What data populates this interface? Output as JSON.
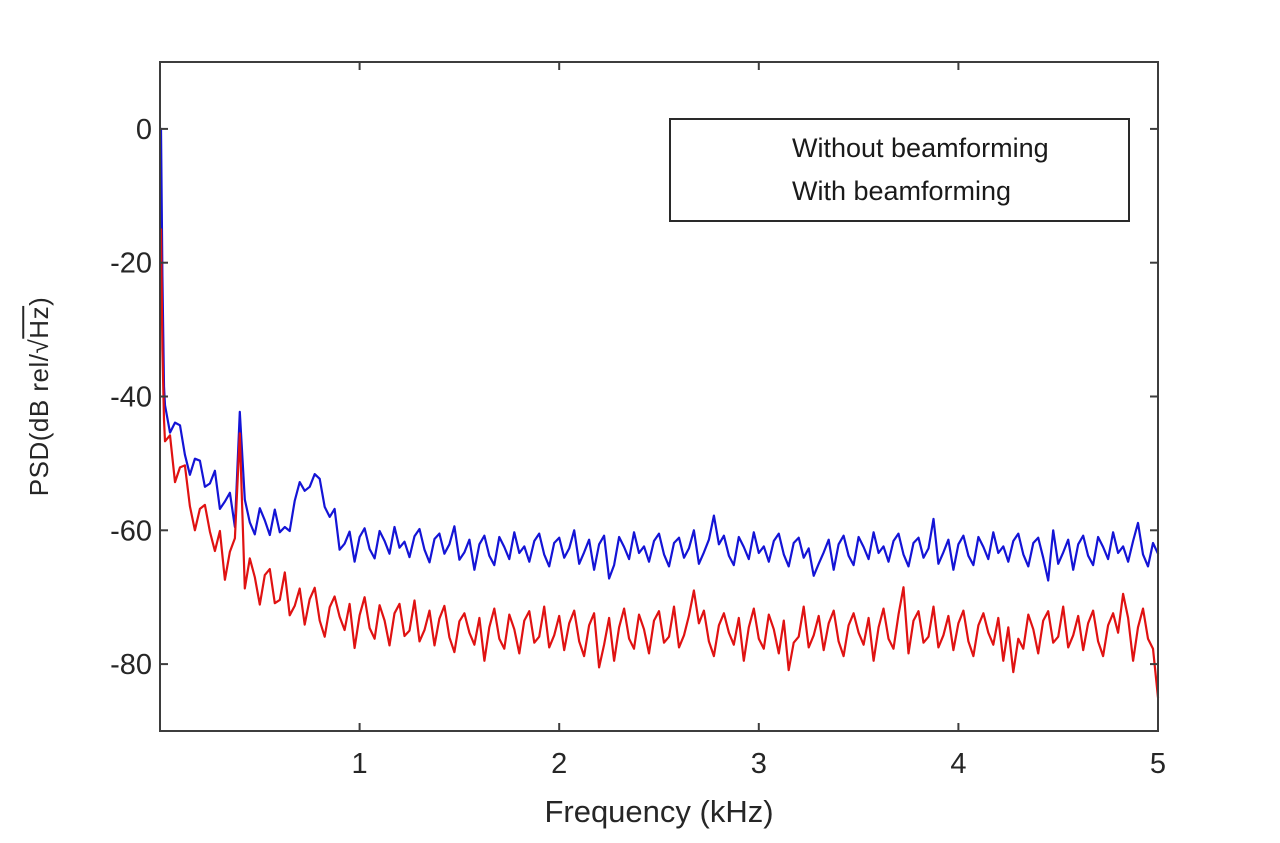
{
  "figure": {
    "background": "#ffffff"
  },
  "chart_data": {
    "type": "line",
    "title": "",
    "xlabel": "Frequency (kHz)",
    "ylabel": "PSD(dB rel/√Hz)",
    "ylabel_parts": {
      "pre": "PSD(dB rel/√",
      "overline": "Hz",
      "post": ")"
    },
    "xlim": [
      0,
      5
    ],
    "ylim": [
      -90,
      10
    ],
    "grid": false,
    "axis_color": "#3d3d3d",
    "tick_label_color": "#262626",
    "x_ticks": {
      "values": [
        1,
        2,
        3,
        4,
        5
      ],
      "labels": [
        "1",
        "2",
        "3",
        "4",
        "5"
      ]
    },
    "y_ticks": {
      "values": [
        0,
        -20,
        -40,
        -60,
        -80
      ],
      "labels": [
        "0",
        "-20",
        "-40",
        "-60",
        "-80"
      ]
    },
    "legend": {
      "position": "upper-right",
      "entries": [
        "Without beamforming",
        "With beamforming"
      ]
    },
    "series": [
      {
        "name": "Without beamforming",
        "color": "#1414d6",
        "lead_points": [
          [
            0.005,
            0.0
          ],
          [
            0.012,
            -22.0
          ],
          [
            0.02,
            -38.5
          ]
        ],
        "x_start": 0.025,
        "x_step": 0.025,
        "values": [
          -41.3,
          -45.4,
          -43.9,
          -44.3,
          -48.7,
          -51.7,
          -49.3,
          -49.6,
          -53.5,
          -53.0,
          -51.1,
          -56.8,
          -55.7,
          -54.4,
          -59.5,
          -42.3,
          -55.4,
          -58.8,
          -60.6,
          -56.7,
          -58.5,
          -60.7,
          -56.9,
          -60.3,
          -59.5,
          -60.1,
          -55.6,
          -52.8,
          -54.1,
          -53.5,
          -51.6,
          -52.3,
          -56.5,
          -58.0,
          -56.8,
          -62.9,
          -62.0,
          -60.2,
          -64.7,
          -61.0,
          -59.7,
          -62.8,
          -64.2,
          -60.1,
          -61.6,
          -63.5,
          -59.5,
          -62.6,
          -61.7,
          -64.0,
          -60.9,
          -59.8,
          -62.9,
          -64.8,
          -61.3,
          -60.5,
          -63.5,
          -62.1,
          -59.4,
          -64.4,
          -63.3,
          -61.4,
          -65.9,
          -62.1,
          -60.8,
          -63.8,
          -65.2,
          -61.0,
          -62.5,
          -64.3,
          -60.3,
          -63.4,
          -62.4,
          -64.7,
          -61.6,
          -60.5,
          -63.6,
          -65.4,
          -61.9,
          -61.1,
          -64.1,
          -62.7,
          -60.0,
          -65.0,
          -63.3,
          -61.4,
          -65.9,
          -62.1,
          -60.8,
          -67.2,
          -65.2,
          -61.0,
          -62.5,
          -64.3,
          -60.3,
          -63.4,
          -62.4,
          -64.7,
          -61.6,
          -60.5,
          -63.6,
          -65.4,
          -61.9,
          -61.1,
          -64.1,
          -62.7,
          -60.0,
          -65.0,
          -63.3,
          -61.4,
          -57.8,
          -62.1,
          -60.8,
          -63.8,
          -65.2,
          -61.0,
          -62.5,
          -64.3,
          -60.3,
          -63.4,
          -62.4,
          -64.7,
          -61.6,
          -60.5,
          -63.6,
          -65.4,
          -61.9,
          -61.1,
          -64.1,
          -62.7,
          -66.8,
          -65.0,
          -63.3,
          -61.4,
          -65.9,
          -62.1,
          -60.8,
          -63.8,
          -65.2,
          -61.0,
          -62.5,
          -64.3,
          -60.3,
          -63.4,
          -62.4,
          -64.7,
          -61.6,
          -60.5,
          -63.6,
          -65.4,
          -61.9,
          -61.1,
          -64.1,
          -62.7,
          -58.3,
          -65.0,
          -63.3,
          -61.4,
          -65.9,
          -62.1,
          -60.8,
          -63.8,
          -65.2,
          -61.0,
          -62.5,
          -64.3,
          -60.3,
          -63.4,
          -62.4,
          -64.7,
          -61.6,
          -60.5,
          -63.6,
          -65.4,
          -61.9,
          -61.1,
          -64.1,
          -67.5,
          -60.0,
          -65.0,
          -63.3,
          -61.4,
          -65.9,
          -62.1,
          -60.8,
          -63.8,
          -65.2,
          -61.0,
          -62.5,
          -64.3,
          -60.3,
          -63.4,
          -62.4,
          -64.7,
          -61.6,
          -58.9,
          -63.6,
          -65.4,
          -61.9,
          -63.5
        ]
      },
      {
        "name": "With beamforming",
        "color": "#e01212",
        "lead_points": [
          [
            0.005,
            -15.0
          ],
          [
            0.012,
            -33.0
          ],
          [
            0.02,
            -43.5
          ]
        ],
        "x_start": 0.025,
        "x_step": 0.025,
        "values": [
          -46.7,
          -45.8,
          -52.8,
          -50.6,
          -50.3,
          -56.4,
          -60.0,
          -56.8,
          -56.2,
          -60.2,
          -63.1,
          -60.1,
          -67.4,
          -63.2,
          -61.2,
          -45.5,
          -68.7,
          -64.2,
          -67.0,
          -71.1,
          -66.7,
          -65.8,
          -70.9,
          -70.4,
          -66.3,
          -72.7,
          -71.3,
          -68.7,
          -74.1,
          -70.3,
          -68.6,
          -73.5,
          -75.9,
          -71.5,
          -69.9,
          -72.9,
          -74.9,
          -71.0,
          -77.6,
          -72.7,
          -70.0,
          -74.6,
          -76.2,
          -71.2,
          -73.5,
          -77.2,
          -72.4,
          -71.0,
          -75.8,
          -75.0,
          -70.5,
          -76.6,
          -74.9,
          -72.0,
          -77.2,
          -73.2,
          -71.3,
          -76.0,
          -78.2,
          -73.6,
          -72.4,
          -75.3,
          -77.1,
          -73.1,
          -79.5,
          -74.5,
          -71.7,
          -76.2,
          -77.7,
          -72.6,
          -74.8,
          -78.4,
          -73.5,
          -72.1,
          -76.8,
          -75.9,
          -71.4,
          -77.5,
          -75.7,
          -72.8,
          -77.9,
          -73.9,
          -72.0,
          -76.6,
          -78.8,
          -74.2,
          -72.4,
          -80.5,
          -77.1,
          -73.1,
          -79.5,
          -74.5,
          -71.7,
          -76.2,
          -77.7,
          -72.6,
          -74.8,
          -78.4,
          -73.5,
          -72.1,
          -76.8,
          -75.9,
          -71.4,
          -77.5,
          -75.7,
          -72.8,
          -69.0,
          -73.9,
          -72.0,
          -76.6,
          -78.8,
          -74.2,
          -72.4,
          -75.3,
          -77.1,
          -73.1,
          -79.5,
          -74.5,
          -71.7,
          -76.2,
          -77.7,
          -72.6,
          -74.8,
          -78.4,
          -73.5,
          -80.9,
          -76.8,
          -75.9,
          -71.4,
          -77.5,
          -75.7,
          -72.8,
          -77.9,
          -73.9,
          -72.0,
          -76.6,
          -78.8,
          -74.2,
          -72.4,
          -75.3,
          -77.1,
          -73.1,
          -79.5,
          -74.5,
          -71.7,
          -76.2,
          -77.7,
          -72.6,
          -68.5,
          -78.4,
          -73.5,
          -72.1,
          -76.8,
          -75.9,
          -71.4,
          -77.5,
          -75.7,
          -72.8,
          -77.9,
          -73.9,
          -72.0,
          -76.6,
          -78.8,
          -74.2,
          -72.4,
          -75.3,
          -77.1,
          -73.1,
          -79.5,
          -74.5,
          -81.2,
          -76.2,
          -77.7,
          -72.6,
          -74.8,
          -78.4,
          -73.5,
          -72.1,
          -76.8,
          -75.9,
          -71.4,
          -77.5,
          -75.7,
          -72.8,
          -77.9,
          -73.9,
          -72.0,
          -76.6,
          -78.8,
          -74.2,
          -72.4,
          -75.3,
          -69.5,
          -73.1,
          -79.5,
          -74.5,
          -71.7,
          -76.2,
          -77.7,
          -85.0
        ]
      }
    ]
  }
}
